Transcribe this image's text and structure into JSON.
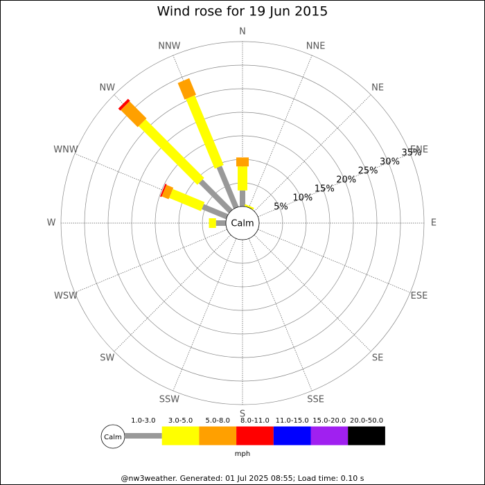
{
  "chart_data": {
    "type": "windrose",
    "title": "Wind rose for 19 Jun 2015",
    "directions": [
      "N",
      "NNE",
      "NE",
      "ENE",
      "E",
      "ESE",
      "SE",
      "SSE",
      "S",
      "SSW",
      "SW",
      "WSW",
      "W",
      "WNW",
      "NW",
      "NNW"
    ],
    "center_label": "Calm",
    "rlim": [
      0,
      35
    ],
    "rticks": [
      {
        "value": 5,
        "label": "5%"
      },
      {
        "value": 10,
        "label": "10%"
      },
      {
        "value": 15,
        "label": "15%"
      },
      {
        "value": 20,
        "label": "20%"
      },
      {
        "value": 25,
        "label": "25%"
      },
      {
        "value": 30,
        "label": "30%"
      },
      {
        "value": 35,
        "label": "35%"
      }
    ],
    "series": [
      {
        "name": "1.0-3.0",
        "color": "#999999",
        "values": [
          3.4,
          0,
          0,
          0,
          0,
          0,
          0,
          0,
          0,
          0,
          0,
          0,
          2.1,
          5.6,
          9,
          9.4
        ]
      },
      {
        "name": "3.0-5.0",
        "color": "#ffff00",
        "values": [
          5.1,
          0.4,
          0,
          0,
          0,
          0,
          0,
          0,
          0,
          0,
          0,
          0,
          1.5,
          7.3,
          17.6,
          16
        ]
      },
      {
        "name": "5.0-8.0",
        "color": "#ffa000",
        "values": [
          1.9,
          0,
          0,
          0,
          0,
          0,
          0,
          0,
          0,
          0,
          0,
          0,
          0,
          1.6,
          5.1,
          3.8
        ]
      },
      {
        "name": "8.0-11.0",
        "color": "#ff0000",
        "values": [
          0,
          0,
          0,
          0,
          0,
          0,
          0,
          0,
          0,
          0,
          0,
          0,
          0,
          0.3,
          0.6,
          0
        ]
      },
      {
        "name": "11.0-15.0",
        "color": "#0000ff",
        "values": [
          0,
          0,
          0,
          0,
          0,
          0,
          0,
          0,
          0,
          0,
          0,
          0,
          0,
          0,
          0,
          0
        ]
      },
      {
        "name": "15.0-20.0",
        "color": "#a020f0",
        "values": [
          0,
          0,
          0,
          0,
          0,
          0,
          0,
          0,
          0,
          0,
          0,
          0,
          0,
          0,
          0,
          0
        ]
      },
      {
        "name": "20.0-50.0",
        "color": "#000000",
        "values": [
          0,
          0,
          0,
          0,
          0,
          0,
          0,
          0,
          0,
          0,
          0,
          0,
          0,
          0,
          0,
          0
        ]
      }
    ],
    "legend_unit": "mph",
    "footer": "@nw3weather. Generated: 01 Jul 2025 08:55; Load time: 0.10 s"
  }
}
